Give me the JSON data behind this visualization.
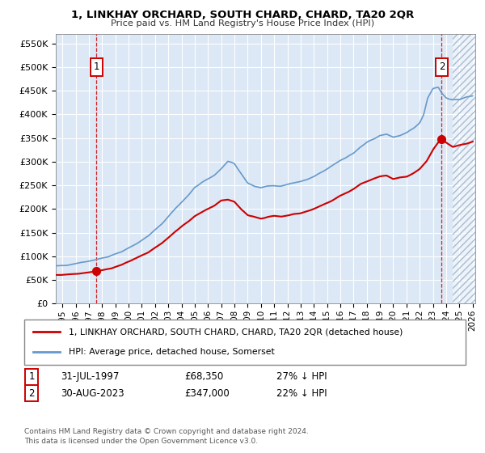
{
  "title": "1, LINKHAY ORCHARD, SOUTH CHARD, CHARD, TA20 2QR",
  "subtitle": "Price paid vs. HM Land Registry's House Price Index (HPI)",
  "ylim": [
    0,
    570000
  ],
  "yticks": [
    0,
    50000,
    100000,
    150000,
    200000,
    250000,
    300000,
    350000,
    400000,
    450000,
    500000,
    550000
  ],
  "xlim_start": 1994.5,
  "xlim_end": 2026.2,
  "point1_x": 1997.58,
  "point1_y": 68350,
  "point2_x": 2023.66,
  "point2_y": 347000,
  "hatch_start": 2024.5,
  "legend_line1": "1, LINKHAY ORCHARD, SOUTH CHARD, CHARD, TA20 2QR (detached house)",
  "legend_line2": "HPI: Average price, detached house, Somerset",
  "footer": "Contains HM Land Registry data © Crown copyright and database right 2024.\nThis data is licensed under the Open Government Licence v3.0.",
  "line_color_red": "#cc0000",
  "line_color_blue": "#6699cc",
  "bg_color": "#dce8f5",
  "grid_color": "#ffffff",
  "point_color_red": "#cc0000",
  "dashed_line_color": "#cc0000",
  "hatch_color": "#c0c8d8"
}
